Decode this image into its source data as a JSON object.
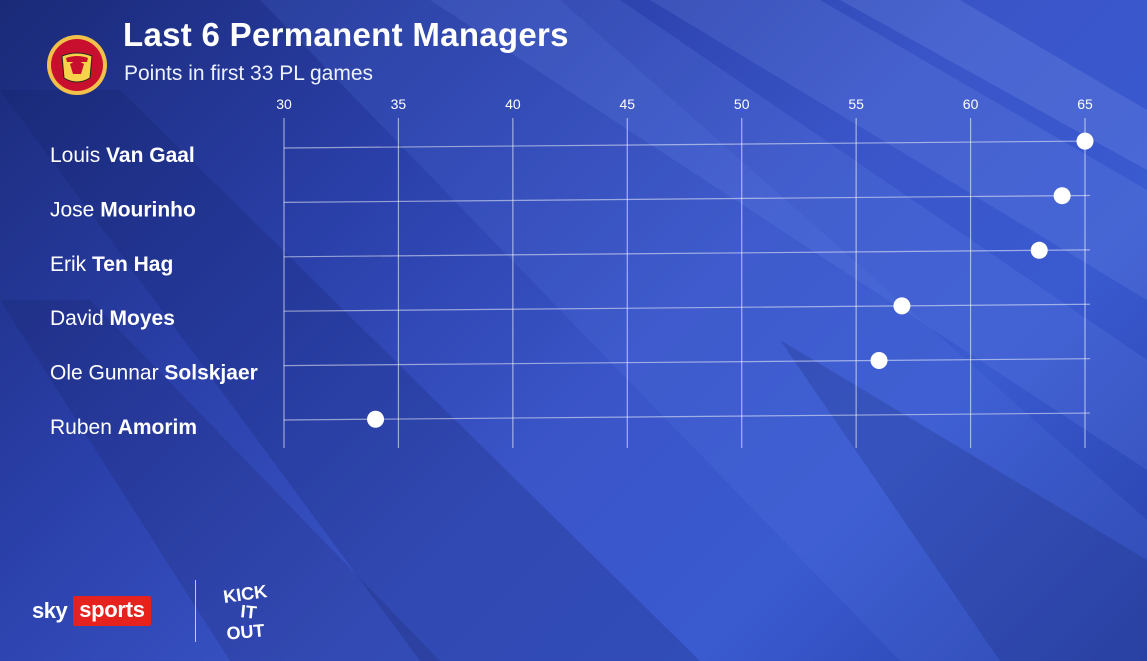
{
  "header": {
    "title": "Last 6 Permanent Managers",
    "subtitle": "Points in first 33 PL games"
  },
  "crest": {
    "icon": "manchester-united-crest-icon",
    "text_top": "MANCHESTER",
    "text_bottom": "UNITED"
  },
  "footer": {
    "sky_word": "sky",
    "sports_word": "sports",
    "kick_it_out_lines": [
      "KICK",
      "IT",
      "OUT"
    ]
  },
  "colors": {
    "sky_red": "#e5221e",
    "background_dark": "#1a2a78",
    "background_light": "#3a5ad0"
  },
  "chart_data": {
    "type": "scatter",
    "title": "Last 6 Permanent Managers",
    "subtitle": "Points in first 33 PL games",
    "xlim": [
      30,
      65
    ],
    "xticks": [
      30,
      35,
      40,
      45,
      50,
      55,
      60,
      65
    ],
    "grid": true,
    "categories": [
      {
        "first": "Louis",
        "last": "Van Gaal",
        "value": 65
      },
      {
        "first": "Jose",
        "last": "Mourinho",
        "value": 64
      },
      {
        "first": "Erik",
        "last": "Ten Hag",
        "value": 63
      },
      {
        "first": "David",
        "last": "Moyes",
        "value": 57
      },
      {
        "first": "Ole Gunnar",
        "last": "Solskjaer",
        "value": 56
      },
      {
        "first": "Ruben",
        "last": "Amorim",
        "value": 34
      }
    ]
  }
}
